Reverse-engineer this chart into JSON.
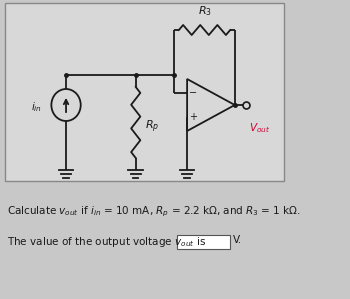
{
  "bg_color": "#c8c8c8",
  "circuit_box_color": "#dcdcdc",
  "line_color": "#1a1a1a",
  "text_color": "#1a1a1a",
  "vout_color": "#cc0033",
  "dot_color": "#1a1a1a"
}
